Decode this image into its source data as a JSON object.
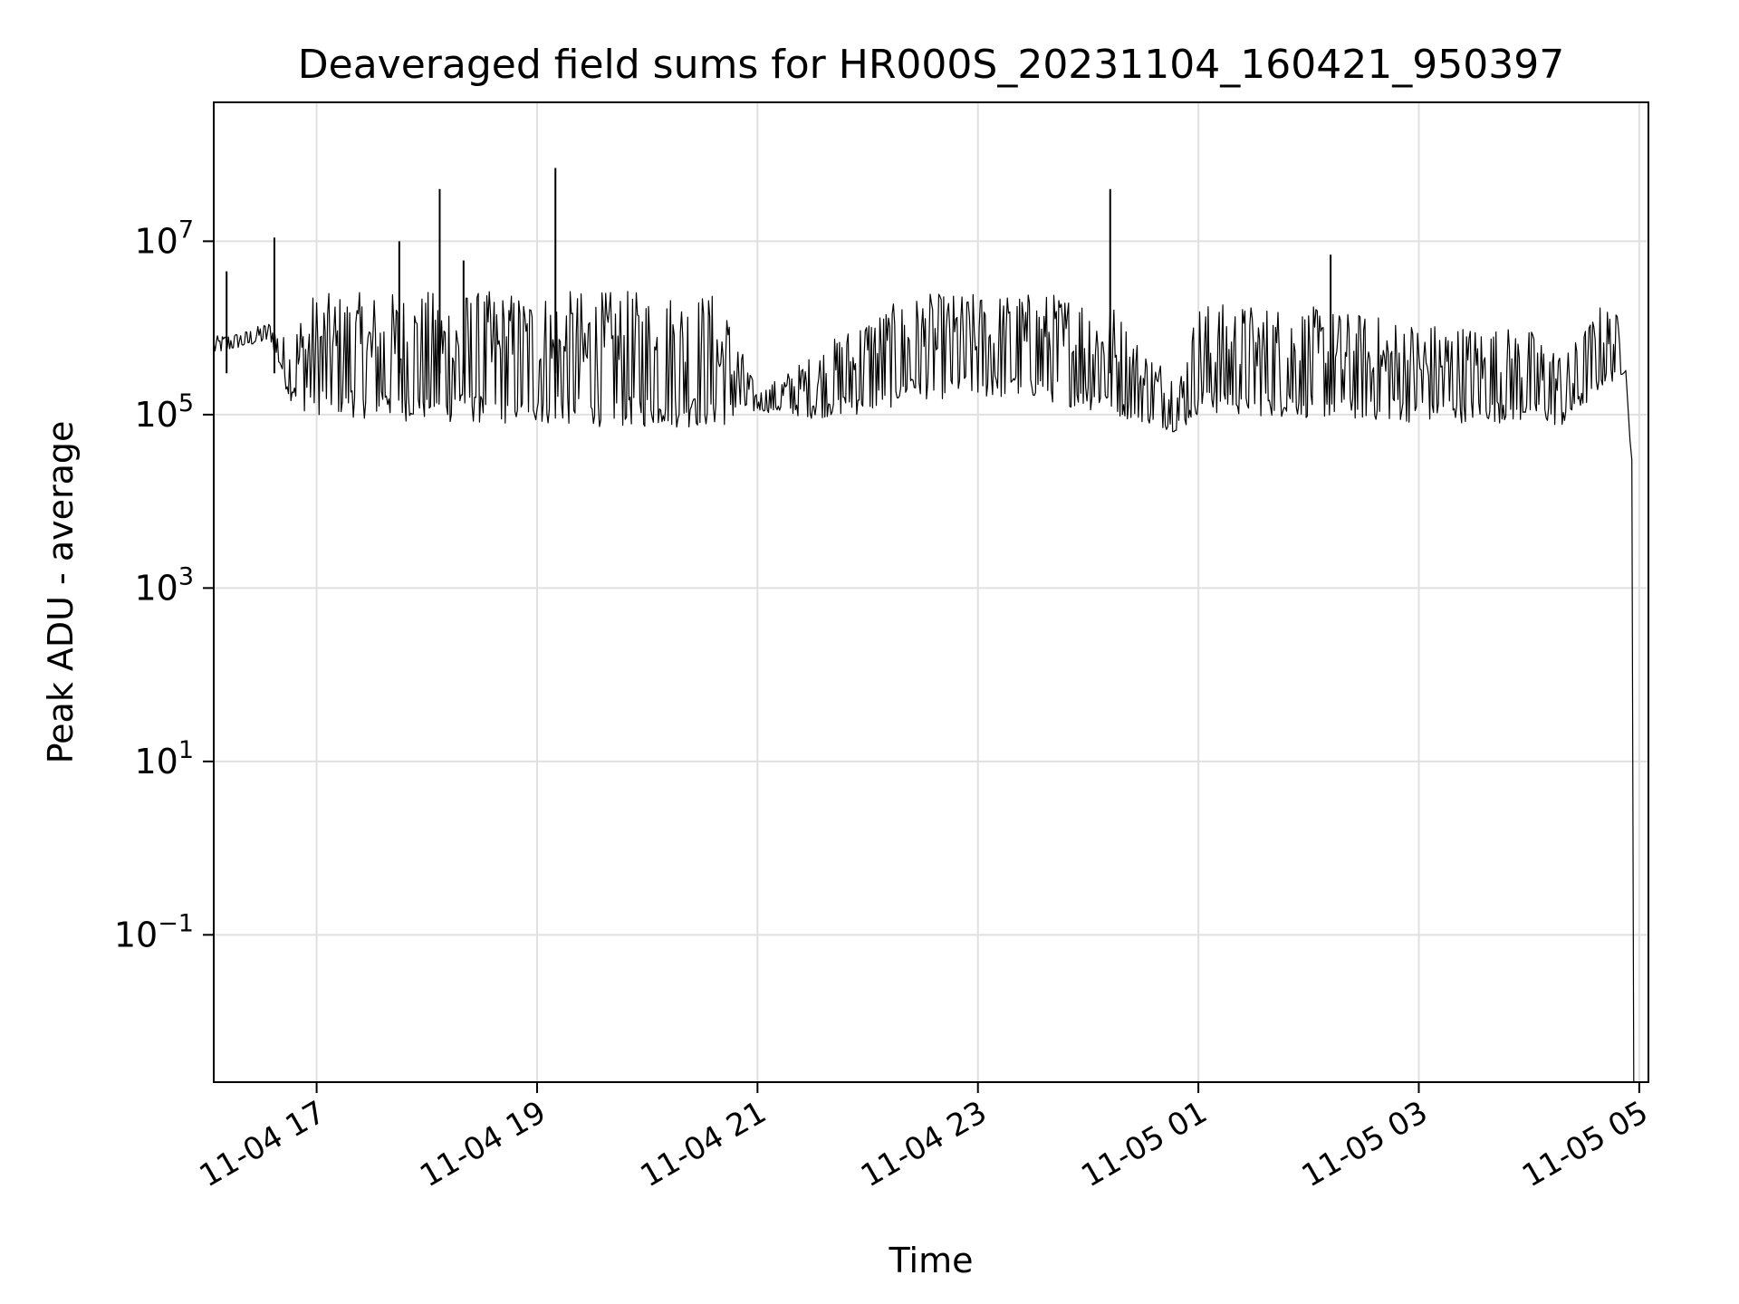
{
  "chart_data": {
    "type": "line",
    "title": "Deaveraged field sums for HR000S_20231104_160421_950397",
    "xlabel": "Time",
    "ylabel": "Peak ADU - average",
    "yscale": "log",
    "xlim": [
      "2023-11-04 16:04",
      "2023-11-05 05:05"
    ],
    "ylim": [
      0.002,
      400000000
    ],
    "grid": true,
    "line_color": "#000000",
    "x_ticks": [
      {
        "t": "2023-11-04 17:00",
        "label": "11-04 17"
      },
      {
        "t": "2023-11-04 19:00",
        "label": "11-04 19"
      },
      {
        "t": "2023-11-04 21:00",
        "label": "11-04 21"
      },
      {
        "t": "2023-11-04 23:00",
        "label": "11-04 23"
      },
      {
        "t": "2023-11-05 01:00",
        "label": "11-05 01"
      },
      {
        "t": "2023-11-05 03:00",
        "label": "11-05 03"
      },
      {
        "t": "2023-11-05 05:00",
        "label": "11-05 05"
      }
    ],
    "y_ticks": [
      {
        "v": 10000000,
        "base": "10",
        "exp": "7"
      },
      {
        "v": 100000,
        "base": "10",
        "exp": "5"
      },
      {
        "v": 1000,
        "base": "10",
        "exp": "3"
      },
      {
        "v": 10,
        "base": "10",
        "exp": "1"
      },
      {
        "v": 0.1,
        "base": "10",
        "exp": "−1"
      }
    ],
    "series": [
      {
        "envelope": [
          {
            "t": "2023-11-04 16:04",
            "lo": 500000,
            "hi": 800000
          },
          {
            "t": "2023-11-04 16:20",
            "lo": 600000,
            "hi": 900000
          },
          {
            "t": "2023-11-04 16:35",
            "lo": 700000,
            "hi": 1200000
          },
          {
            "t": "2023-11-04 16:45",
            "lo": 150000,
            "hi": 700000
          },
          {
            "t": "2023-11-04 16:55",
            "lo": 100000,
            "hi": 2500000
          },
          {
            "t": "2023-11-04 18:00",
            "lo": 80000,
            "hi": 2700000
          },
          {
            "t": "2023-11-04 19:00",
            "lo": 75000,
            "hi": 2700000
          },
          {
            "t": "2023-11-04 20:00",
            "lo": 70000,
            "hi": 2700000
          },
          {
            "t": "2023-11-04 20:40",
            "lo": 70000,
            "hi": 2600000
          },
          {
            "t": "2023-11-04 21:00",
            "lo": 110000,
            "hi": 180000
          },
          {
            "t": "2023-11-04 21:30",
            "lo": 90000,
            "hi": 500000
          },
          {
            "t": "2023-11-04 22:00",
            "lo": 100000,
            "hi": 1500000
          },
          {
            "t": "2023-11-04 22:30",
            "lo": 150000,
            "hi": 2500000
          },
          {
            "t": "2023-11-04 23:30",
            "lo": 150000,
            "hi": 2600000
          },
          {
            "t": "2023-11-05 00:10",
            "lo": 100000,
            "hi": 2500000
          },
          {
            "t": "2023-11-05 00:30",
            "lo": 80000,
            "hi": 600000
          },
          {
            "t": "2023-11-05 00:50",
            "lo": 60000,
            "hi": 300000
          },
          {
            "t": "2023-11-05 01:00",
            "lo": 100000,
            "hi": 2000000
          },
          {
            "t": "2023-11-05 02:00",
            "lo": 90000,
            "hi": 1800000
          },
          {
            "t": "2023-11-05 03:00",
            "lo": 80000,
            "hi": 1200000
          },
          {
            "t": "2023-11-05 04:00",
            "lo": 80000,
            "hi": 1000000
          },
          {
            "t": "2023-11-05 04:20",
            "lo": 70000,
            "hi": 500000
          },
          {
            "t": "2023-11-05 04:40",
            "lo": 200000,
            "hi": 2000000
          },
          {
            "t": "2023-11-05 04:53",
            "lo": 300000,
            "hi": 1200000
          }
        ],
        "spikes": [
          {
            "t": "2023-11-04 16:11",
            "v": 4500000
          },
          {
            "t": "2023-11-04 16:37",
            "v": 11000000
          },
          {
            "t": "2023-11-04 17:45",
            "v": 10000000
          },
          {
            "t": "2023-11-04 18:07",
            "v": 40000000
          },
          {
            "t": "2023-11-04 18:20",
            "v": 6000000
          },
          {
            "t": "2023-11-04 19:10",
            "v": 70000000
          },
          {
            "t": "2023-11-05 00:12",
            "v": 40000000
          },
          {
            "t": "2023-11-05 02:12",
            "v": 7000000
          }
        ],
        "tail": [
          {
            "t": "2023-11-05 04:55",
            "v": 50000
          },
          {
            "t": "2023-11-05 04:56",
            "v": 30000
          },
          {
            "t": "2023-11-05 04:57",
            "v": 0.002
          }
        ]
      }
    ]
  }
}
